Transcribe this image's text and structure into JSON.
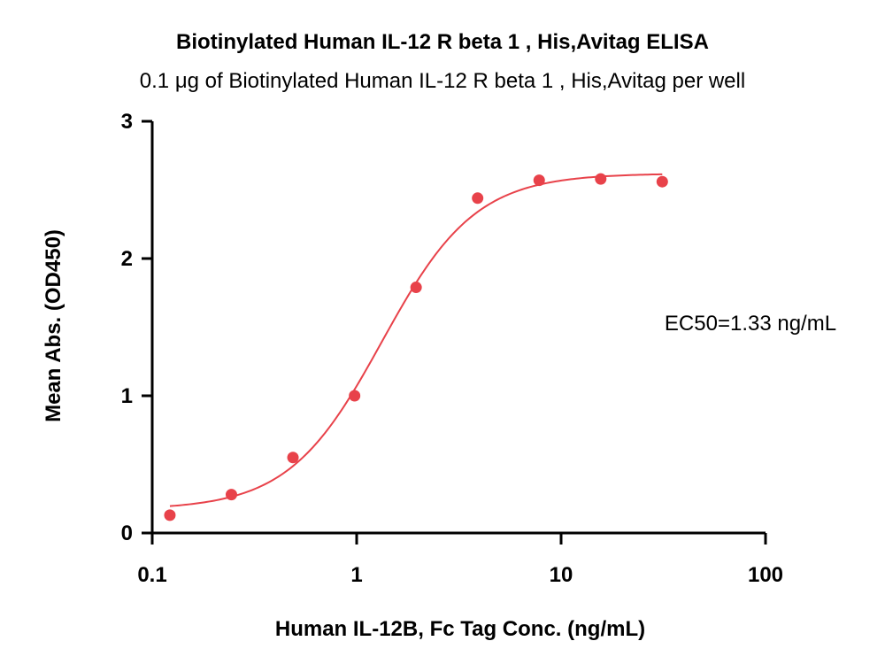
{
  "chart_data": {
    "type": "scatter",
    "title": "Biotinylated Human IL-12 R beta 1 , His,Avitag ELISA",
    "subtitle": "0.1 μg of Biotinylated Human IL-12 R beta 1 , His,Avitag per well",
    "xlabel": "Human IL-12B, Fc Tag Conc. (ng/mL)",
    "ylabel": "Mean Abs. (OD450)",
    "x_scale": "log",
    "xlim": [
      0.1,
      100
    ],
    "ylim": [
      0,
      3
    ],
    "x_ticks": [
      0.1,
      1,
      10,
      100
    ],
    "x_tick_labels": [
      "0.1",
      "1",
      "10",
      "100"
    ],
    "y_ticks": [
      0,
      1,
      2,
      3
    ],
    "y_tick_labels": [
      "0",
      "1",
      "2",
      "3"
    ],
    "grid": false,
    "series": [
      {
        "x": [
          0.122,
          0.244,
          0.488,
          0.977,
          1.953,
          3.906,
          7.813,
          15.625,
          31.25
        ],
        "y": [
          0.13,
          0.28,
          0.55,
          1.0,
          1.79,
          2.44,
          2.57,
          2.58,
          2.56
        ],
        "color": "#E8424A"
      }
    ],
    "fit_curve": {
      "type": "4PL",
      "bottom": 0.17,
      "top": 2.62,
      "ec50": 1.33,
      "hill": 1.9,
      "color": "#E8424A"
    },
    "annotations": [
      "EC50=1.33 ng/mL"
    ]
  }
}
